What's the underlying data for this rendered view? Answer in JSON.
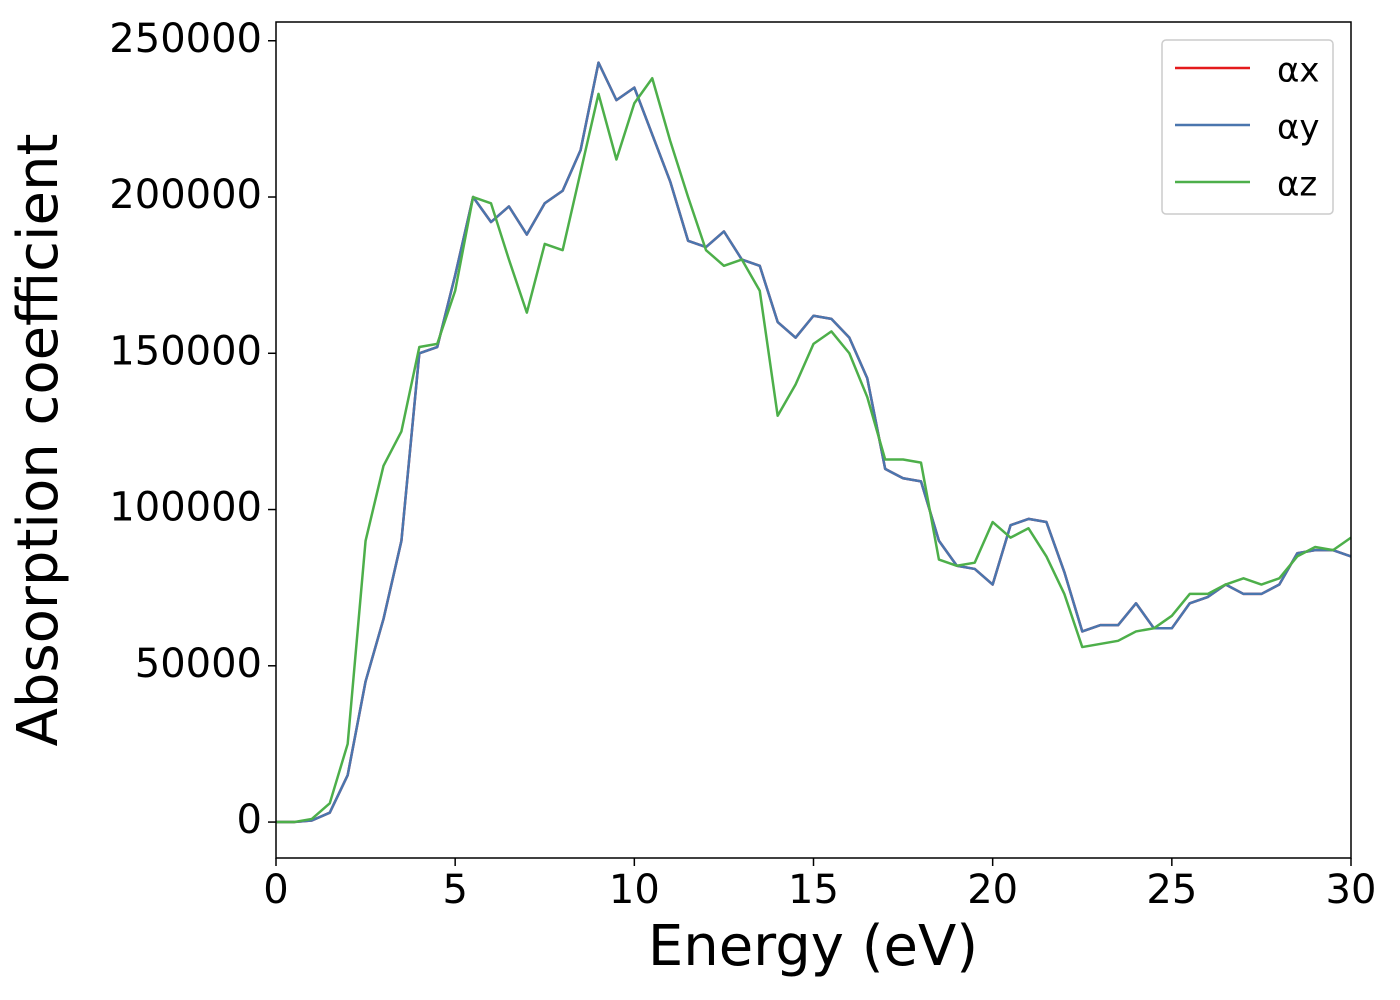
{
  "chart_data": {
    "type": "line",
    "xlabel": "Energy (eV)",
    "ylabel": "Absorption coefficient",
    "x": [
      0,
      0.5,
      1,
      1.5,
      2,
      2.5,
      3,
      3.5,
      4,
      4.5,
      5,
      5.5,
      6,
      6.5,
      7,
      7.5,
      8,
      8.5,
      9,
      9.5,
      10,
      10.5,
      11,
      11.5,
      12,
      12.5,
      13,
      13.5,
      14,
      14.5,
      15,
      15.5,
      16,
      16.5,
      17,
      17.5,
      18,
      18.5,
      19,
      19.5,
      20,
      20.5,
      21,
      21.5,
      22,
      22.5,
      23,
      23.5,
      24,
      24.5,
      25,
      25.5,
      26,
      26.5,
      27,
      27.5,
      28,
      28.5,
      29,
      29.5,
      30
    ],
    "series": [
      {
        "name": "αx",
        "color": "#e41a1c",
        "values": [
          0,
          0,
          500,
          3000,
          15000,
          45000,
          65000,
          90000,
          150000,
          152000,
          175000,
          200000,
          192000,
          197000,
          188000,
          198000,
          202000,
          215000,
          243000,
          231000,
          235000,
          220000,
          205000,
          186000,
          184000,
          189000,
          180000,
          178000,
          160000,
          155000,
          162000,
          161000,
          155000,
          142000,
          113000,
          110000,
          109000,
          90000,
          82000,
          81000,
          76000,
          95000,
          97000,
          96000,
          80000,
          61000,
          63000,
          63000,
          70000,
          62000,
          62000,
          70000,
          72000,
          76000,
          73000,
          73000,
          76000,
          86000,
          87000,
          87000,
          85000
        ]
      },
      {
        "name": "αy",
        "color": "#4a76ae",
        "values": [
          0,
          0,
          500,
          3000,
          15000,
          45000,
          65000,
          90000,
          150000,
          152000,
          175000,
          200000,
          192000,
          197000,
          188000,
          198000,
          202000,
          215000,
          243000,
          231000,
          235000,
          220000,
          205000,
          186000,
          184000,
          189000,
          180000,
          178000,
          160000,
          155000,
          162000,
          161000,
          155000,
          142000,
          113000,
          110000,
          109000,
          90000,
          82000,
          81000,
          76000,
          95000,
          97000,
          96000,
          80000,
          61000,
          63000,
          63000,
          70000,
          62000,
          62000,
          70000,
          72000,
          76000,
          73000,
          73000,
          76000,
          86000,
          87000,
          87000,
          85000
        ]
      },
      {
        "name": "αz",
        "color": "#4daf4a",
        "values": [
          0,
          0,
          1000,
          6000,
          25000,
          90000,
          114000,
          125000,
          152000,
          153000,
          170000,
          200000,
          198000,
          180000,
          163000,
          185000,
          183000,
          208000,
          233000,
          212000,
          230000,
          238000,
          218000,
          200000,
          183000,
          178000,
          180000,
          170000,
          130000,
          140000,
          153000,
          157000,
          150000,
          136000,
          116000,
          116000,
          115000,
          84000,
          82000,
          83000,
          96000,
          91000,
          94000,
          85000,
          73000,
          56000,
          57000,
          58000,
          61000,
          62000,
          66000,
          73000,
          73000,
          76000,
          78000,
          76000,
          78000,
          85000,
          88000,
          87000,
          91000
        ]
      }
    ],
    "xlim": [
      0,
      30
    ],
    "xticks": [
      0,
      5,
      10,
      15,
      20,
      25,
      30
    ],
    "ylim": [
      -11500,
      256000
    ],
    "yticks": [
      0,
      50000,
      100000,
      150000,
      200000,
      250000
    ],
    "legend": "upper right"
  }
}
